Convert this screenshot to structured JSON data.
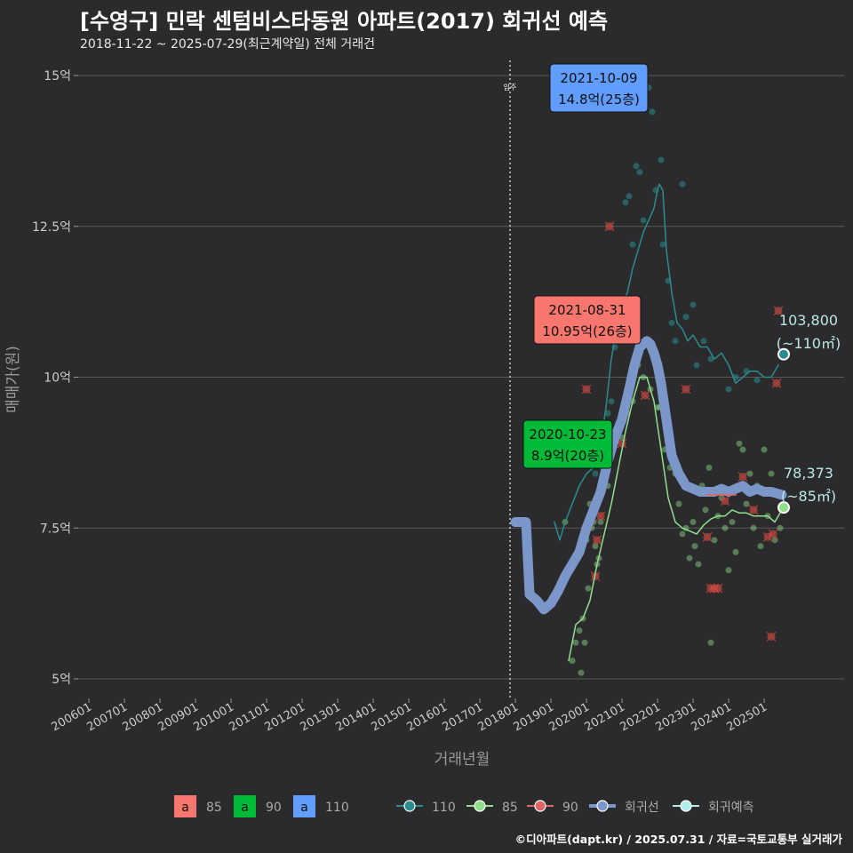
{
  "header": {
    "title": "[수영구] 민락 센텀비스타동원 아파트(2017) 회귀선 예측",
    "subtitle": "2018-11-22 ~ 2025-07-29(최근계약일) 전체 거래건"
  },
  "footer": {
    "credit": "©디아파트(dapt.kr) / 2025.07.31 / 자료=국토교통부 실거래가"
  },
  "chart_data": {
    "type": "scatter",
    "title": "[수영구] 민락 센텀비스타동원 아파트(2017) 회귀선 예측",
    "subtitle": "2018-11-22 ~ 2025-07-29(최근계약일) 전체 거래건",
    "xlabel": "거래년월",
    "ylabel": "매매가(원)",
    "xlim": [
      2006.0,
      2025.75
    ],
    "ylim": [
      4.8,
      15.35
    ],
    "yticks": [
      5,
      7.5,
      10,
      12.5,
      15
    ],
    "ytick_labels": [
      "5억",
      "7.5억",
      "10억",
      "12.5억",
      "15억"
    ],
    "xtick_labels": [
      "200601",
      "200701",
      "200801",
      "200901",
      "201001",
      "201101",
      "201201",
      "201301",
      "201401",
      "201501",
      "201601",
      "201701",
      "201801",
      "201901",
      "202001",
      "202101",
      "202201",
      "202301",
      "202401",
      "202501"
    ],
    "vline": {
      "x": 2017.85,
      "label": "입주"
    },
    "colors": {
      "s110": "#2a8c8c",
      "s85": "#8fe08a",
      "s90": "#e06666",
      "regression": "#7b96c8",
      "forecast": "#b0ece8",
      "label85": "#f8766d",
      "label90": "#00ba38",
      "label110": "#619cff",
      "grid": "#5a5a5a",
      "text": "#cccccc"
    },
    "series": [
      {
        "name": "110",
        "type": "line",
        "x": [
          2019.1,
          2019.25,
          2019.4,
          2019.6,
          2019.8,
          2020.0,
          2020.2,
          2020.4,
          2020.55,
          2020.7,
          2020.85,
          2021.0,
          2021.15,
          2021.3,
          2021.45,
          2021.6,
          2021.75,
          2021.9,
          2022.0,
          2022.05,
          2022.15,
          2022.25,
          2022.4,
          2022.55,
          2022.7,
          2022.85,
          2023.0,
          2023.2,
          2023.4,
          2023.6,
          2023.8,
          2024.0,
          2024.2,
          2024.4,
          2024.6,
          2024.8,
          2025.0,
          2025.2,
          2025.4
        ],
        "values": [
          7.6,
          7.3,
          7.6,
          7.9,
          8.2,
          8.4,
          8.5,
          8.9,
          9.5,
          10.3,
          10.8,
          11.2,
          11.4,
          11.8,
          12.1,
          12.4,
          12.6,
          12.8,
          13.1,
          13.2,
          13.1,
          12.1,
          11.4,
          10.9,
          10.8,
          10.6,
          10.7,
          10.5,
          10.5,
          10.3,
          10.4,
          10.2,
          9.9,
          10.0,
          10.1,
          10.1,
          10.0,
          10.0,
          10.2
        ]
      },
      {
        "name": "85",
        "type": "line",
        "x": [
          2019.5,
          2019.7,
          2019.9,
          2020.1,
          2020.3,
          2020.5,
          2020.7,
          2020.9,
          2021.1,
          2021.3,
          2021.5,
          2021.7,
          2021.9,
          2022.1,
          2022.3,
          2022.5,
          2022.7,
          2022.9,
          2023.1,
          2023.3,
          2023.5,
          2023.7,
          2023.9,
          2024.1,
          2024.3,
          2024.5,
          2024.7,
          2024.9,
          2025.1,
          2025.3,
          2025.5
        ],
        "values": [
          5.3,
          5.9,
          6.0,
          6.3,
          6.9,
          7.4,
          7.9,
          8.5,
          9.1,
          9.6,
          10.0,
          10.0,
          9.6,
          8.8,
          8.0,
          7.6,
          7.5,
          7.45,
          7.4,
          7.55,
          7.65,
          7.7,
          7.7,
          7.8,
          7.75,
          7.75,
          7.7,
          7.7,
          7.7,
          7.6,
          7.8
        ]
      },
      {
        "name": "90",
        "type": "line",
        "x": [
          2023.4,
          2023.6,
          2023.8,
          2024.0,
          2024.2
        ],
        "values": [
          8.05,
          8.05,
          8.05,
          8.05,
          8.05
        ]
      },
      {
        "name": "회귀선",
        "type": "line",
        "x": [
          2018.0,
          2018.3,
          2018.4,
          2018.6,
          2018.8,
          2019.0,
          2019.2,
          2019.4,
          2019.6,
          2019.8,
          2020.0,
          2020.2,
          2020.4,
          2020.6,
          2020.8,
          2021.0,
          2021.2,
          2021.35,
          2021.5,
          2021.6,
          2021.7,
          2021.8,
          2021.9,
          2022.0,
          2022.1,
          2022.2,
          2022.3,
          2022.4,
          2022.6,
          2022.8,
          2023.0,
          2023.2,
          2023.4,
          2023.6,
          2023.8,
          2024.0,
          2024.2,
          2024.4,
          2024.6,
          2024.8,
          2025.0,
          2025.2,
          2025.5
        ],
        "values": [
          7.6,
          7.6,
          6.4,
          6.3,
          6.15,
          6.25,
          6.45,
          6.7,
          6.9,
          7.1,
          7.5,
          7.8,
          8.1,
          8.6,
          9.0,
          9.3,
          9.8,
          10.2,
          10.5,
          10.55,
          10.6,
          10.55,
          10.4,
          10.2,
          9.9,
          9.5,
          9.1,
          8.7,
          8.4,
          8.2,
          8.15,
          8.1,
          8.1,
          8.1,
          8.15,
          8.1,
          8.15,
          8.2,
          8.1,
          8.15,
          8.1,
          8.1,
          8.05
        ]
      }
    ],
    "scatter_110": [
      {
        "x": 2020.25,
        "y": 8.4
      },
      {
        "x": 2020.45,
        "y": 8.9
      },
      {
        "x": 2020.6,
        "y": 9.4
      },
      {
        "x": 2020.7,
        "y": 9.6
      },
      {
        "x": 2020.8,
        "y": 10.5
      },
      {
        "x": 2020.9,
        "y": 11.1
      },
      {
        "x": 2021.0,
        "y": 11.3
      },
      {
        "x": 2021.1,
        "y": 12.9
      },
      {
        "x": 2021.2,
        "y": 13.0
      },
      {
        "x": 2021.3,
        "y": 12.2
      },
      {
        "x": 2021.4,
        "y": 13.5
      },
      {
        "x": 2021.5,
        "y": 13.4
      },
      {
        "x": 2021.6,
        "y": 12.6
      },
      {
        "x": 2021.75,
        "y": 14.8
      },
      {
        "x": 2021.85,
        "y": 14.4
      },
      {
        "x": 2021.95,
        "y": 13.1
      },
      {
        "x": 2022.1,
        "y": 13.6
      },
      {
        "x": 2022.15,
        "y": 12.2
      },
      {
        "x": 2022.3,
        "y": 11.6
      },
      {
        "x": 2022.4,
        "y": 10.9
      },
      {
        "x": 2022.5,
        "y": 10.6
      },
      {
        "x": 2022.7,
        "y": 13.2
      },
      {
        "x": 2022.8,
        "y": 11.0
      },
      {
        "x": 2023.0,
        "y": 11.2
      },
      {
        "x": 2023.1,
        "y": 10.2
      },
      {
        "x": 2023.3,
        "y": 10.6
      },
      {
        "x": 2023.5,
        "y": 10.3
      },
      {
        "x": 2024.0,
        "y": 9.8
      },
      {
        "x": 2024.2,
        "y": 10.0
      },
      {
        "x": 2024.5,
        "y": 10.1
      },
      {
        "x": 2024.8,
        "y": 9.95
      }
    ],
    "scatter_85": [
      {
        "x": 2019.4,
        "y": 7.6
      },
      {
        "x": 2019.6,
        "y": 5.3
      },
      {
        "x": 2019.7,
        "y": 5.6
      },
      {
        "x": 2019.8,
        "y": 5.8
      },
      {
        "x": 2019.9,
        "y": 6.0
      },
      {
        "x": 2019.95,
        "y": 5.6
      },
      {
        "x": 2019.85,
        "y": 5.1
      },
      {
        "x": 2020.0,
        "y": 7.3
      },
      {
        "x": 2020.05,
        "y": 6.5
      },
      {
        "x": 2020.1,
        "y": 7.9
      },
      {
        "x": 2020.15,
        "y": 7.5
      },
      {
        "x": 2020.2,
        "y": 7.6
      },
      {
        "x": 2020.25,
        "y": 7.2
      },
      {
        "x": 2020.3,
        "y": 6.9
      },
      {
        "x": 2020.35,
        "y": 7.0
      },
      {
        "x": 2020.4,
        "y": 7.6
      },
      {
        "x": 2020.5,
        "y": 8.5
      },
      {
        "x": 2020.6,
        "y": 8.2
      },
      {
        "x": 2020.7,
        "y": 8.7
      },
      {
        "x": 2020.85,
        "y": 9.1
      },
      {
        "x": 2021.0,
        "y": 9.0
      },
      {
        "x": 2021.15,
        "y": 9.4
      },
      {
        "x": 2021.3,
        "y": 9.6
      },
      {
        "x": 2021.45,
        "y": 10.2
      },
      {
        "x": 2021.6,
        "y": 10.0
      },
      {
        "x": 2021.8,
        "y": 9.8
      },
      {
        "x": 2021.9,
        "y": 10.4
      },
      {
        "x": 2022.0,
        "y": 9.5
      },
      {
        "x": 2022.05,
        "y": 9.5
      },
      {
        "x": 2022.2,
        "y": 8.8
      },
      {
        "x": 2022.35,
        "y": 8.5
      },
      {
        "x": 2022.5,
        "y": 8.4
      },
      {
        "x": 2022.6,
        "y": 7.9
      },
      {
        "x": 2022.7,
        "y": 7.4
      },
      {
        "x": 2022.8,
        "y": 7.5
      },
      {
        "x": 2022.9,
        "y": 7.0
      },
      {
        "x": 2023.0,
        "y": 7.6
      },
      {
        "x": 2023.05,
        "y": 7.2
      },
      {
        "x": 2023.15,
        "y": 6.9
      },
      {
        "x": 2023.25,
        "y": 8.2
      },
      {
        "x": 2023.35,
        "y": 7.8
      },
      {
        "x": 2023.45,
        "y": 8.5
      },
      {
        "x": 2023.5,
        "y": 5.6
      },
      {
        "x": 2023.6,
        "y": 7.3
      },
      {
        "x": 2023.7,
        "y": 7.7
      },
      {
        "x": 2023.8,
        "y": 8.0
      },
      {
        "x": 2023.9,
        "y": 7.5
      },
      {
        "x": 2024.0,
        "y": 6.8
      },
      {
        "x": 2024.1,
        "y": 7.6
      },
      {
        "x": 2024.2,
        "y": 7.1
      },
      {
        "x": 2024.3,
        "y": 8.9
      },
      {
        "x": 2024.4,
        "y": 8.8
      },
      {
        "x": 2024.5,
        "y": 7.9
      },
      {
        "x": 2024.6,
        "y": 8.4
      },
      {
        "x": 2024.7,
        "y": 7.5
      },
      {
        "x": 2024.8,
        "y": 8.2
      },
      {
        "x": 2024.9,
        "y": 7.2
      },
      {
        "x": 2025.0,
        "y": 8.8
      },
      {
        "x": 2025.1,
        "y": 7.7
      },
      {
        "x": 2025.2,
        "y": 8.4
      },
      {
        "x": 2025.3,
        "y": 7.3
      },
      {
        "x": 2025.45,
        "y": 7.5
      }
    ],
    "scatter_90": [
      {
        "x": 2020.0,
        "y": 9.8
      },
      {
        "x": 2020.25,
        "y": 6.7
      },
      {
        "x": 2020.3,
        "y": 7.3
      },
      {
        "x": 2020.4,
        "y": 7.7
      },
      {
        "x": 2020.65,
        "y": 12.5
      },
      {
        "x": 2021.0,
        "y": 8.9
      },
      {
        "x": 2021.65,
        "y": 9.7
      },
      {
        "x": 2022.8,
        "y": 9.8
      },
      {
        "x": 2023.4,
        "y": 7.35
      },
      {
        "x": 2023.5,
        "y": 6.5
      },
      {
        "x": 2023.6,
        "y": 6.5
      },
      {
        "x": 2023.7,
        "y": 6.5
      },
      {
        "x": 2023.9,
        "y": 7.95
      },
      {
        "x": 2024.4,
        "y": 8.35
      },
      {
        "x": 2024.7,
        "y": 7.8
      },
      {
        "x": 2025.1,
        "y": 7.35
      },
      {
        "x": 2025.2,
        "y": 5.7
      },
      {
        "x": 2025.25,
        "y": 7.4
      },
      {
        "x": 2025.35,
        "y": 9.9
      },
      {
        "x": 2025.4,
        "y": 11.1
      }
    ],
    "callouts": [
      {
        "date": "2021-10-09",
        "price": "14.8억(25층)",
        "x": 2021.77,
        "y": 14.8,
        "series": "110"
      },
      {
        "date": "2021-08-31",
        "price": "10.95억(26층)",
        "x": 2021.66,
        "y": 10.95,
        "series": "85"
      },
      {
        "date": "2020-10-23",
        "price": "8.9억(20층)",
        "x": 2020.81,
        "y": 8.9,
        "series": "90"
      }
    ],
    "end_labels": [
      {
        "value": "103,800",
        "area": "(~110㎡)",
        "x": 2025.55,
        "y": 10.38,
        "series": "110"
      },
      {
        "value": "78,373",
        "area": "(~85㎡)",
        "x": 2025.55,
        "y": 7.84,
        "series": "85"
      }
    ],
    "legend": {
      "boxes": [
        {
          "label": "85",
          "letter": "a",
          "color": "#f8766d"
        },
        {
          "label": "90",
          "letter": "a",
          "color": "#00ba38"
        },
        {
          "label": "110",
          "letter": "a",
          "color": "#619cff"
        }
      ],
      "lines": [
        {
          "label": "110",
          "color": "#2a8c8c"
        },
        {
          "label": "85",
          "color": "#8fe08a"
        },
        {
          "label": "90",
          "color": "#e06666"
        },
        {
          "label": "회귀선",
          "color": "#7b96c8"
        },
        {
          "label": "회귀예측",
          "color": "#b0ece8"
        }
      ]
    }
  }
}
